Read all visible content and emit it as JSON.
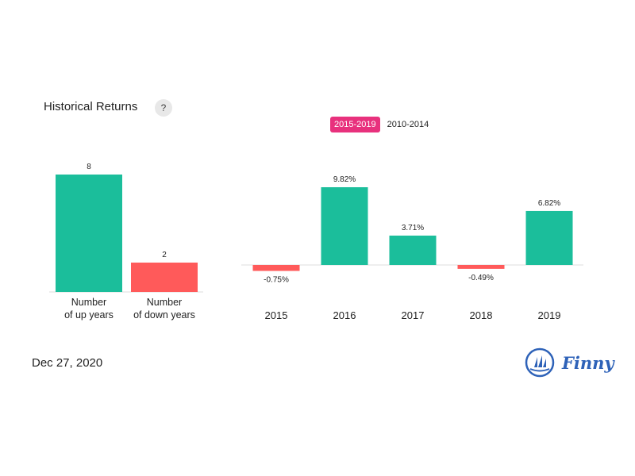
{
  "header": {
    "title": "Historical Returns",
    "help_label": "?"
  },
  "tabs": [
    {
      "label": "2015-2019",
      "active": true
    },
    {
      "label": "2010-2014",
      "active": false
    }
  ],
  "footer": {
    "date": "Dec 27, 2020",
    "brand": "Finny"
  },
  "colors": {
    "positive": "#1bbe9b",
    "negative": "#ff5a5a",
    "active_tab": "#e8317d",
    "brand": "#2e62b8"
  },
  "chart_data": [
    {
      "type": "bar",
      "categories": [
        [
          "Number",
          "of up years"
        ],
        [
          "Number",
          "of down years"
        ]
      ],
      "values": [
        8,
        2
      ],
      "value_labels": [
        "8",
        "2"
      ],
      "colors": [
        "#1bbe9b",
        "#ff5a5a"
      ],
      "ylim": [
        0,
        8
      ]
    },
    {
      "type": "bar",
      "categories": [
        "2015",
        "2016",
        "2017",
        "2018",
        "2019"
      ],
      "values": [
        -0.75,
        9.82,
        3.71,
        -0.49,
        6.82
      ],
      "value_labels": [
        "-0.75%",
        "9.82%",
        "3.71%",
        "-0.49%",
        "6.82%"
      ],
      "ylim": [
        -0.75,
        9.82
      ]
    }
  ]
}
